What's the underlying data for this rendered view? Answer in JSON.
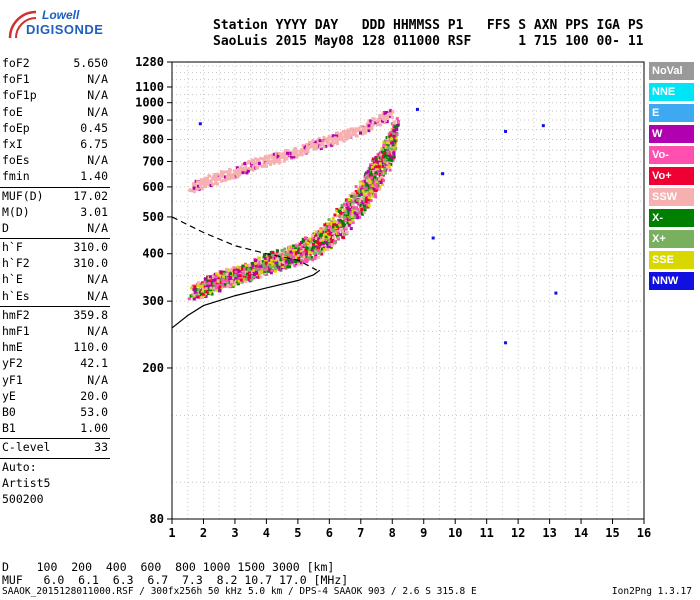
{
  "logo": {
    "line1": "Lowell",
    "line2": "DIGISONDE"
  },
  "header": {
    "row1": "Station YYYY DAY   DDD HHMMSS P1   FFS S AXN PPS IGA PS",
    "row2": "SaoLuis 2015 May08 128 011000 RSF      1 715 100 00- 11"
  },
  "params": [
    {
      "name": "foF2",
      "value": "5.650"
    },
    {
      "name": "foF1",
      "value": "N/A"
    },
    {
      "name": "foF1p",
      "value": "N/A"
    },
    {
      "name": "foE",
      "value": "N/A"
    },
    {
      "name": "foEp",
      "value": "0.45"
    },
    {
      "name": "fxI",
      "value": "6.75"
    },
    {
      "name": "foEs",
      "value": "N/A"
    },
    {
      "name": "fmin",
      "value": "1.40"
    },
    {
      "sep": true
    },
    {
      "name": "MUF(D)",
      "value": "17.02"
    },
    {
      "name": "M(D)",
      "value": "3.01"
    },
    {
      "name": "D",
      "value": "N/A"
    },
    {
      "sep": true
    },
    {
      "name": "h`F",
      "value": "310.0"
    },
    {
      "name": "h`F2",
      "value": "310.0"
    },
    {
      "name": "h`E",
      "value": "N/A"
    },
    {
      "name": "h`Es",
      "value": "N/A"
    },
    {
      "sep": true
    },
    {
      "name": "hmF2",
      "value": "359.8"
    },
    {
      "name": "hmF1",
      "value": "N/A"
    },
    {
      "name": "hmE",
      "value": "110.0"
    },
    {
      "name": "yF2",
      "value": "42.1"
    },
    {
      "name": "yF1",
      "value": "N/A"
    },
    {
      "name": "yE",
      "value": "20.0"
    },
    {
      "name": "B0",
      "value": "53.0"
    },
    {
      "name": "B1",
      "value": "1.00"
    },
    {
      "sep": true
    },
    {
      "name": "C-level",
      "value": "33"
    },
    {
      "sep": true
    },
    {
      "text": "Auto:"
    },
    {
      "text": "Artist5"
    },
    {
      "text": "500200"
    }
  ],
  "legend": [
    {
      "label": "NoVal",
      "color": "#999999"
    },
    {
      "label": "NNE",
      "color": "#00e5f5"
    },
    {
      "label": "E",
      "color": "#3ea8f0"
    },
    {
      "label": "W",
      "color": "#b000b0"
    },
    {
      "label": "Vo-",
      "color": "#ff50b0"
    },
    {
      "label": "Vo+",
      "color": "#ee0033"
    },
    {
      "label": "SSW",
      "color": "#f7b0b0"
    },
    {
      "label": "X-",
      "color": "#008000"
    },
    {
      "label": "X+",
      "color": "#78b060"
    },
    {
      "label": "SSE",
      "color": "#d8d800"
    },
    {
      "label": "NNW",
      "color": "#1010e0"
    }
  ],
  "muf_table": {
    "d_row": "D    100  200  400  600  800 1000 1500 3000 [km]",
    "muf_row": "MUF   6.0  6.1  6.3  6.7  7.3  8.2 10.7 17.0 [MHz]"
  },
  "footer": {
    "left": "SAAOK_2015128011000.RSF / 300fx256h 50 kHz 5.0 km / DPS-4 SAAOK 903 / 2.6 S 315.8 E",
    "right": "Ion2Png 1.3.17"
  },
  "chart_data": {
    "type": "scatter",
    "title": "",
    "xlabel": "",
    "ylabel": "",
    "xlim": [
      1,
      16
    ],
    "ylim": [
      80,
      1280
    ],
    "x_ticks": [
      1,
      2,
      3,
      4,
      5,
      6,
      7,
      8,
      9,
      10,
      11,
      12,
      13,
      14,
      15,
      16
    ],
    "y_ticks": [
      80,
      200,
      300,
      400,
      500,
      600,
      700,
      800,
      900,
      1000,
      1100,
      1280
    ],
    "y_scale": "log",
    "grid": true,
    "traces": [
      {
        "name": "O-trace F",
        "color": "#ee0033",
        "points": [
          [
            1.6,
            320
          ],
          [
            2.0,
            325
          ],
          [
            2.5,
            340
          ],
          [
            3.0,
            350
          ],
          [
            3.5,
            360
          ],
          [
            4.0,
            375
          ],
          [
            4.5,
            385
          ],
          [
            5.0,
            395
          ],
          [
            5.5,
            410
          ],
          [
            6.0,
            440
          ],
          [
            6.5,
            480
          ],
          [
            7.0,
            540
          ],
          [
            7.3,
            590
          ],
          [
            7.6,
            650
          ],
          [
            7.9,
            730
          ],
          [
            8.0,
            770
          ]
        ]
      },
      {
        "name": "X-trace F",
        "color": "#b000b0",
        "points": [
          [
            2.0,
            330
          ],
          [
            2.5,
            345
          ],
          [
            3.0,
            355
          ],
          [
            3.5,
            365
          ],
          [
            4.0,
            385
          ],
          [
            4.5,
            395
          ],
          [
            5.0,
            410
          ],
          [
            5.5,
            435
          ],
          [
            6.0,
            470
          ],
          [
            6.5,
            530
          ],
          [
            7.0,
            600
          ],
          [
            7.3,
            660
          ],
          [
            7.6,
            720
          ],
          [
            7.9,
            800
          ],
          [
            8.1,
            880
          ]
        ]
      },
      {
        "name": "2F echo",
        "color": "#f7b0b0",
        "points": [
          [
            1.6,
            600
          ],
          [
            2.0,
            620
          ],
          [
            2.5,
            640
          ],
          [
            3.0,
            660
          ],
          [
            3.5,
            690
          ],
          [
            4.0,
            710
          ],
          [
            4.5,
            730
          ],
          [
            5.0,
            750
          ],
          [
            5.5,
            780
          ],
          [
            6.0,
            800
          ],
          [
            6.5,
            830
          ],
          [
            7.0,
            860
          ],
          [
            7.5,
            900
          ],
          [
            8.0,
            950
          ]
        ]
      },
      {
        "name": "outliers",
        "color": "#1010e0",
        "points": [
          [
            8.8,
            960
          ],
          [
            9.6,
            650
          ],
          [
            9.3,
            440
          ],
          [
            12.8,
            870
          ],
          [
            11.6,
            840
          ],
          [
            13.2,
            315
          ],
          [
            11.6,
            233
          ],
          [
            1.9,
            880
          ]
        ]
      }
    ],
    "profile": {
      "solid": [
        [
          1.0,
          255
        ],
        [
          1.5,
          275
        ],
        [
          2.0,
          292
        ],
        [
          3.0,
          310
        ],
        [
          4.0,
          325
        ],
        [
          5.0,
          340
        ],
        [
          5.5,
          352
        ],
        [
          5.7,
          362
        ]
      ],
      "dashed": [
        [
          1.0,
          500
        ],
        [
          2.0,
          455
        ],
        [
          3.0,
          420
        ],
        [
          4.0,
          400
        ],
        [
          5.0,
          385
        ],
        [
          5.6,
          362
        ]
      ]
    }
  }
}
